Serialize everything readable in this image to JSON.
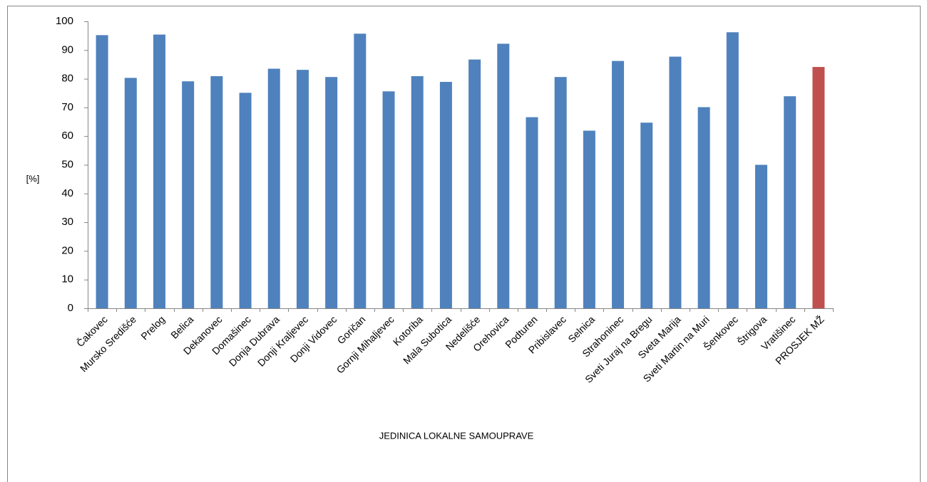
{
  "chart_data": {
    "type": "bar",
    "y_label": "[%]",
    "x_label": "JEDINICA LOKALNE SAMOUPRAVE",
    "categories": [
      "Čakovec",
      "Mursko Središće",
      "Prelog",
      "Belica",
      "Dekanovec",
      "Domašinec",
      "Donja Dubrava",
      "Donji Kraljevec",
      "Donji Vidovec",
      "Goričan",
      "Gornji Mihaljevec",
      "Kotoriba",
      "Mala Subotica",
      "Nedelišće",
      "Orehovica",
      "Podturen",
      "Pribislavec",
      "Selnica",
      "Strahoninec",
      "Sveti Juraj na Bregu",
      "Sveta Marija",
      "Sveti Martin na Muri",
      "Šenkovec",
      "Štrigova",
      "Vratišinec",
      "PROSJEK MŽ"
    ],
    "values": [
      95.2,
      80.3,
      95.4,
      79.1,
      80.9,
      75.1,
      83.5,
      83.1,
      80.6,
      95.7,
      75.6,
      80.9,
      78.9,
      86.7,
      92.2,
      66.6,
      80.6,
      61.9,
      86.2,
      64.7,
      87.7,
      70.1,
      96.2,
      50.0,
      73.9,
      84.1
    ],
    "colors": [
      "#4f81bd",
      "#4f81bd",
      "#4f81bd",
      "#4f81bd",
      "#4f81bd",
      "#4f81bd",
      "#4f81bd",
      "#4f81bd",
      "#4f81bd",
      "#4f81bd",
      "#4f81bd",
      "#4f81bd",
      "#4f81bd",
      "#4f81bd",
      "#4f81bd",
      "#4f81bd",
      "#4f81bd",
      "#4f81bd",
      "#4f81bd",
      "#4f81bd",
      "#4f81bd",
      "#4f81bd",
      "#4f81bd",
      "#4f81bd",
      "#4f81bd",
      "#c0504d"
    ],
    "ylim": [
      0,
      100
    ],
    "yticks": [
      0,
      10,
      20,
      30,
      40,
      50,
      60,
      70,
      80,
      90,
      100
    ],
    "grid": false
  }
}
